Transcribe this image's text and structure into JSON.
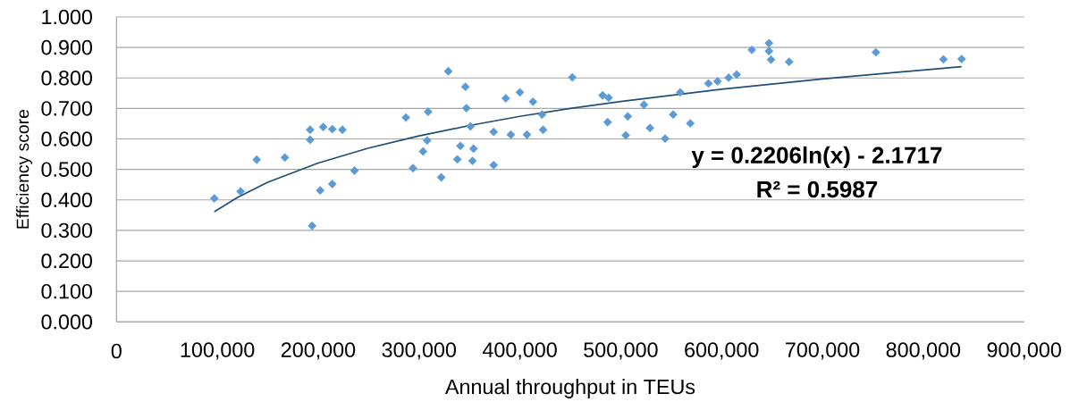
{
  "chart_data": {
    "type": "scatter",
    "xlabel": "Annual throughput in TEUs",
    "ylabel": "Efficiency score",
    "annotations": [
      "y = 0.2206ln(x) - 2.1717",
      "R² = 0.5987"
    ],
    "xlim": [
      0,
      900000
    ],
    "ylim": [
      0,
      1
    ],
    "xticks": [
      0,
      {
        "value": 100000,
        "label": "100,000"
      },
      {
        "value": 200000,
        "label": "200,000"
      },
      {
        "value": 300000,
        "label": "300,000"
      },
      {
        "value": 400000,
        "label": "400,000"
      },
      {
        "value": 500000,
        "label": "500,000"
      },
      {
        "value": 600000,
        "label": "600,000"
      },
      {
        "value": 700000,
        "label": "700,000"
      },
      {
        "value": 800000,
        "label": "800,000"
      },
      {
        "value": 900000,
        "label": "900,000"
      }
    ],
    "yticks": [
      {
        "value": 0,
        "label": "0.000"
      },
      {
        "value": 0.1,
        "label": "0.100"
      },
      {
        "value": 0.2,
        "label": "0.200"
      },
      {
        "value": 0.3,
        "label": "0.300"
      },
      {
        "value": 0.4,
        "label": "0.400"
      },
      {
        "value": 0.5,
        "label": "0.500"
      },
      {
        "value": 0.6,
        "label": "0.600"
      },
      {
        "value": 0.7,
        "label": "0.700"
      },
      {
        "value": 0.8,
        "label": "0.800"
      },
      {
        "value": 0.9,
        "label": "0.900"
      },
      {
        "value": 1,
        "label": "1.000"
      }
    ],
    "grid": "y",
    "series": [
      {
        "color": "#5b9bd5",
        "marker": "diamond",
        "x": [
          97000,
          123000,
          139000,
          167000,
          192000,
          192000,
          194000,
          202000,
          205000,
          214000,
          214000,
          224000,
          236000,
          287000,
          294000,
          304000,
          308000,
          309000,
          322000,
          329000,
          338000,
          341000,
          346000,
          347000,
          351000,
          353000,
          354000,
          374000,
          374000,
          386000,
          391000,
          400000,
          407000,
          413000,
          422000,
          423000,
          452000,
          482000,
          487000,
          488000,
          505000,
          507000,
          523000,
          529000,
          544000,
          552000,
          559000,
          569000,
          587000,
          596000,
          607000,
          615000,
          630000,
          647000,
          647000,
          649000,
          667000,
          753000,
          820000,
          838000
        ],
        "values": [
          0.405,
          0.428,
          0.532,
          0.539,
          0.63,
          0.597,
          0.315,
          0.431,
          0.639,
          0.632,
          0.452,
          0.63,
          0.496,
          0.67,
          0.504,
          0.559,
          0.595,
          0.689,
          0.474,
          0.822,
          0.533,
          0.577,
          0.771,
          0.701,
          0.641,
          0.528,
          0.568,
          0.623,
          0.514,
          0.733,
          0.614,
          0.753,
          0.614,
          0.722,
          0.68,
          0.63,
          0.802,
          0.743,
          0.655,
          0.735,
          0.612,
          0.674,
          0.712,
          0.636,
          0.601,
          0.68,
          0.753,
          0.651,
          0.782,
          0.789,
          0.801,
          0.811,
          0.892,
          0.914,
          0.888,
          0.86,
          0.853,
          0.884,
          0.861,
          0.862
        ]
      },
      {
        "type": "line",
        "color": "#1f4e79",
        "marker": "none",
        "line_style": "solid",
        "x": [
          97000,
          120000,
          150000,
          200000,
          250000,
          300000,
          350000,
          400000,
          450000,
          500000,
          600000,
          700000,
          838000
        ],
        "values": [
          0.361,
          0.408,
          0.458,
          0.521,
          0.57,
          0.61,
          0.644,
          0.674,
          0.7,
          0.723,
          0.763,
          0.797,
          0.837
        ]
      }
    ]
  }
}
